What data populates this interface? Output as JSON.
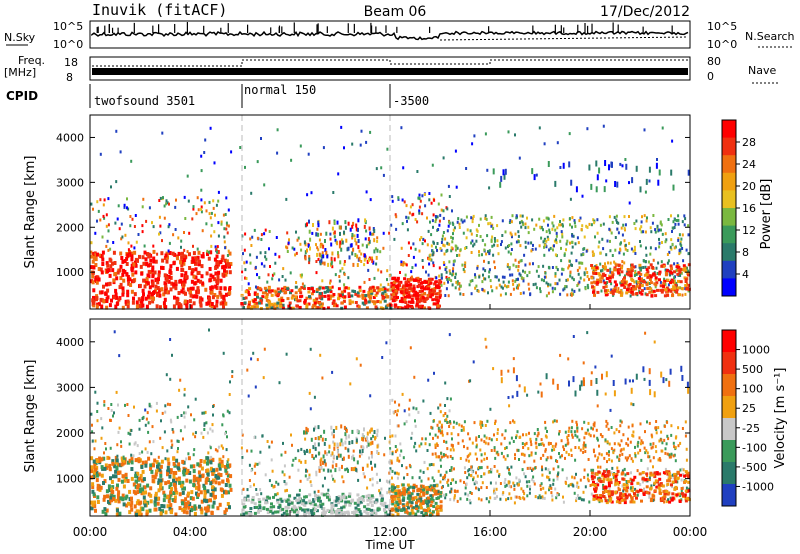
{
  "header": {
    "site": "Inuvik (fitACF)",
    "beam": "Beam 06",
    "date": "17/Dec/2012"
  },
  "strip": {
    "nsky_label": "N.Sky",
    "nsky_ticks": [
      "10^5",
      "10^0"
    ],
    "nsearch_label": "N.Search",
    "nsearch_ticks": [
      "10^5",
      "10^0"
    ],
    "freq_label_1": "Freq.",
    "freq_label_2": "[MHz]",
    "freq_ticks": [
      "18",
      "8"
    ],
    "nave_label": "Nave",
    "nave_ticks": [
      "80",
      "0"
    ],
    "cpid_label": "CPID",
    "cpid_modes": [
      {
        "name": "twofsound 3501",
        "start_hour": 0
      },
      {
        "name": "normal 150",
        "start_hour": 6
      },
      {
        "name": "-3500",
        "start_hour": 12
      }
    ]
  },
  "chart_data": [
    {
      "type": "heatmap",
      "name": "power",
      "ylabel": "Slant Range [km]",
      "xlim": [
        0,
        24
      ],
      "ylim": [
        180,
        4500
      ],
      "yticks": [
        "1000",
        "2000",
        "3000",
        "4000"
      ],
      "colorbar_label": "Power [dB]",
      "colorbar_ticks": [
        "28",
        "24",
        "20",
        "16",
        "12",
        "8",
        "4"
      ],
      "colorbar_colors": [
        "#0000ff",
        "#2040c0",
        "#2a7a6a",
        "#3a9a5a",
        "#7ab840",
        "#e8c020",
        "#f0a010",
        "#f07010",
        "#f03010",
        "#ff0000"
      ]
    },
    {
      "type": "heatmap",
      "name": "velocity",
      "ylabel": "Slant Range [km]",
      "xlabel": "Time UT",
      "xlim": [
        0,
        24
      ],
      "ylim": [
        180,
        4500
      ],
      "xticks": [
        "00:00",
        "04:00",
        "08:00",
        "12:00",
        "16:00",
        "20:00",
        "00:00"
      ],
      "yticks": [
        "1000",
        "2000",
        "3000",
        "4000"
      ],
      "colorbar_label": "Velocity [m s⁻¹]",
      "colorbar_ticks": [
        "1000",
        "500",
        "100",
        "25",
        "-25",
        "-100",
        "-500",
        "-1000"
      ],
      "colorbar_colors": [
        "#2040c0",
        "#2a7a6a",
        "#3a9a5a",
        "#c8c8c8",
        "#f0a010",
        "#f07010",
        "#f03010",
        "#ff0000"
      ]
    }
  ]
}
